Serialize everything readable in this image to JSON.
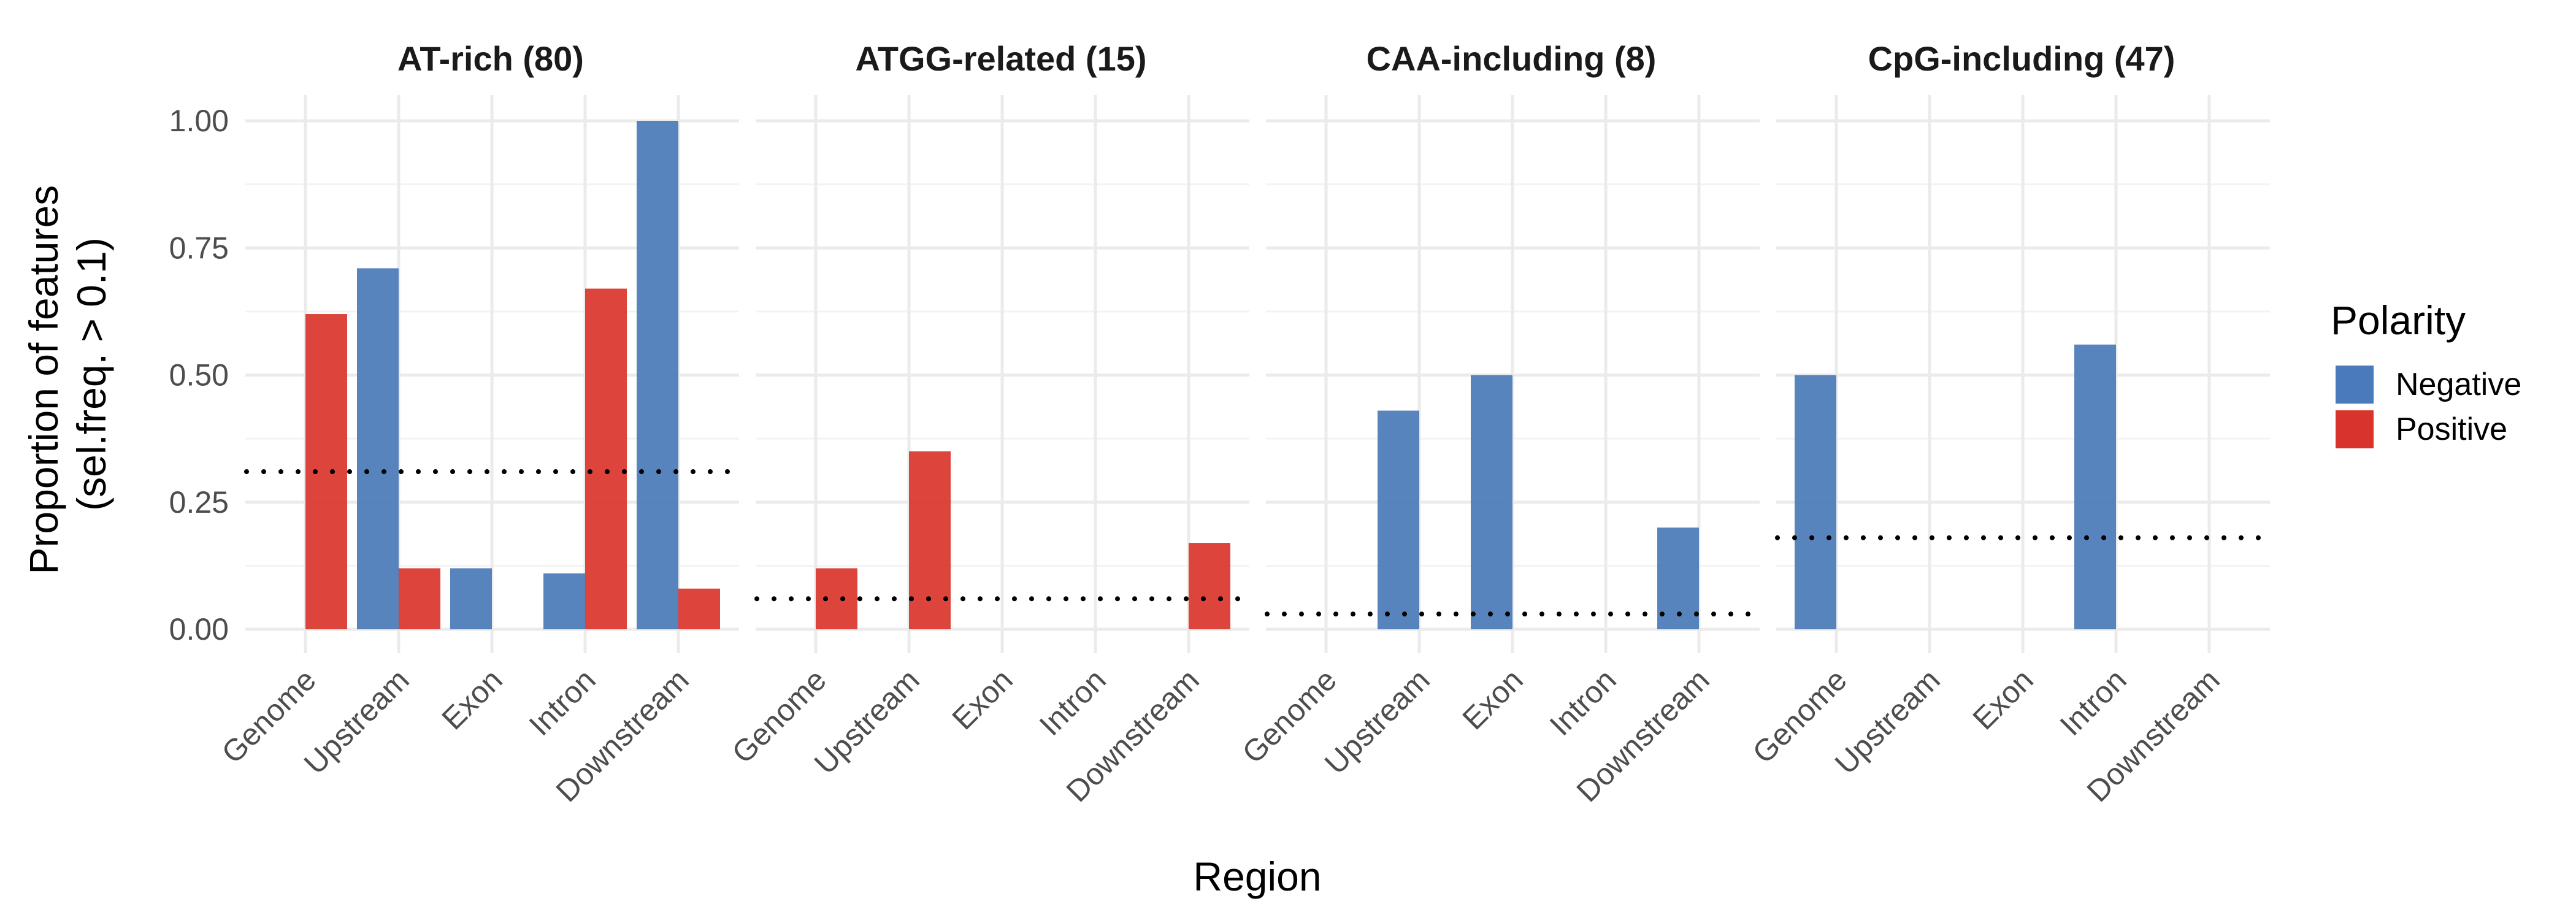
{
  "chart_data": {
    "type": "bar",
    "xlabel": "Region",
    "ylabel_lines": [
      "Proportion of features",
      "(sel.freq. > 0.1)"
    ],
    "ylim": [
      0,
      1.04
    ],
    "y_ticks": [
      "0.00",
      "0.25",
      "0.50",
      "0.75",
      "1.00"
    ],
    "y_tick_values": [
      0,
      0.25,
      0.5,
      0.75,
      1.0
    ],
    "categories": [
      "Genome",
      "Upstream",
      "Exon",
      "Intron",
      "Downstream"
    ],
    "legend": {
      "title": "Polarity",
      "position": "right",
      "items": [
        {
          "label": "Negative",
          "color": "#4a7ab9"
        },
        {
          "label": "Positive",
          "color": "#d9342b"
        }
      ]
    },
    "grid": true,
    "reference_line_style": "dotted",
    "panels": [
      {
        "title": "AT-rich (80)",
        "reference_line": 0.31,
        "series": [
          {
            "name": "Negative",
            "values": [
              0,
              0.71,
              0.12,
              0.11,
              1.0
            ]
          },
          {
            "name": "Positive",
            "values": [
              0.62,
              0.12,
              0,
              0.67,
              0.08
            ]
          }
        ]
      },
      {
        "title": "ATGG-related (15)",
        "reference_line": 0.06,
        "series": [
          {
            "name": "Negative",
            "values": [
              0,
              0,
              0,
              0,
              0
            ]
          },
          {
            "name": "Positive",
            "values": [
              0.12,
              0.35,
              0,
              0,
              0.17
            ]
          }
        ]
      },
      {
        "title": "CAA-including (8)",
        "reference_line": 0.03,
        "series": [
          {
            "name": "Negative",
            "values": [
              0,
              0.43,
              0.5,
              0,
              0.2
            ]
          },
          {
            "name": "Positive",
            "values": [
              0,
              0,
              0,
              0,
              0
            ]
          }
        ]
      },
      {
        "title": "CpG-including (47)",
        "reference_line": 0.18,
        "series": [
          {
            "name": "Negative",
            "values": [
              0.5,
              0,
              0,
              0.56,
              0
            ]
          },
          {
            "name": "Positive",
            "values": [
              0,
              0,
              0,
              0,
              0
            ]
          }
        ]
      }
    ]
  }
}
